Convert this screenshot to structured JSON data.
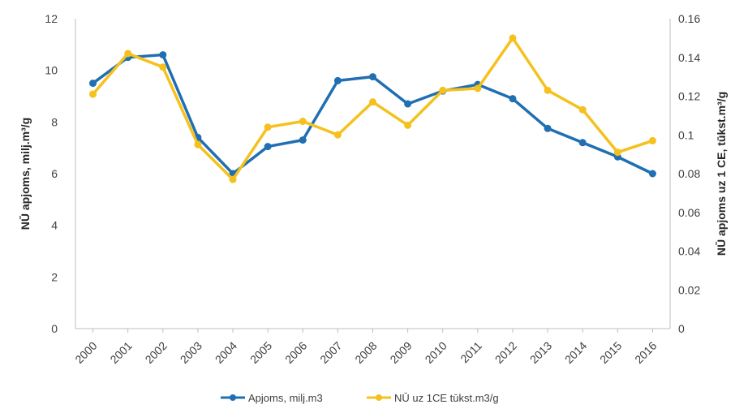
{
  "chart_data": {
    "type": "line",
    "categories": [
      "2000",
      "2001",
      "2002",
      "2003",
      "2004",
      "2005",
      "2006",
      "2007",
      "2008",
      "2009",
      "2010",
      "2011",
      "2012",
      "2013",
      "2014",
      "2015",
      "2016"
    ],
    "series": [
      {
        "name": "Apjoms, milj.m3",
        "axis": "left",
        "color": "#1f6fb2",
        "values": [
          9.5,
          10.5,
          10.6,
          7.4,
          6.0,
          7.05,
          7.3,
          9.6,
          9.75,
          8.7,
          9.2,
          9.45,
          8.9,
          7.75,
          7.2,
          6.65,
          6.0
        ]
      },
      {
        "name": "NŪ uz 1CE tūkst.m3/g",
        "axis": "right",
        "color": "#f5c11e",
        "values": [
          0.121,
          0.142,
          0.135,
          0.095,
          0.077,
          0.104,
          0.107,
          0.1,
          0.117,
          0.105,
          0.123,
          0.124,
          0.15,
          0.123,
          0.113,
          0.091,
          0.097
        ]
      }
    ],
    "ylabel": "NŪ apjoms, milj.m³/g",
    "y2label": "NŪ apjoms uz 1 CE, tūkst.m³/g",
    "ylim": [
      0,
      12
    ],
    "y2lim": [
      0,
      0.16
    ],
    "yticks": [
      "0",
      "2",
      "4",
      "6",
      "8",
      "10",
      "12"
    ],
    "y2ticks": [
      "0",
      "0.02",
      "0.04",
      "0.06",
      "0.08",
      "0.1",
      "0.12",
      "0.14",
      "0.16"
    ],
    "grid": false,
    "legend": "bottom"
  }
}
